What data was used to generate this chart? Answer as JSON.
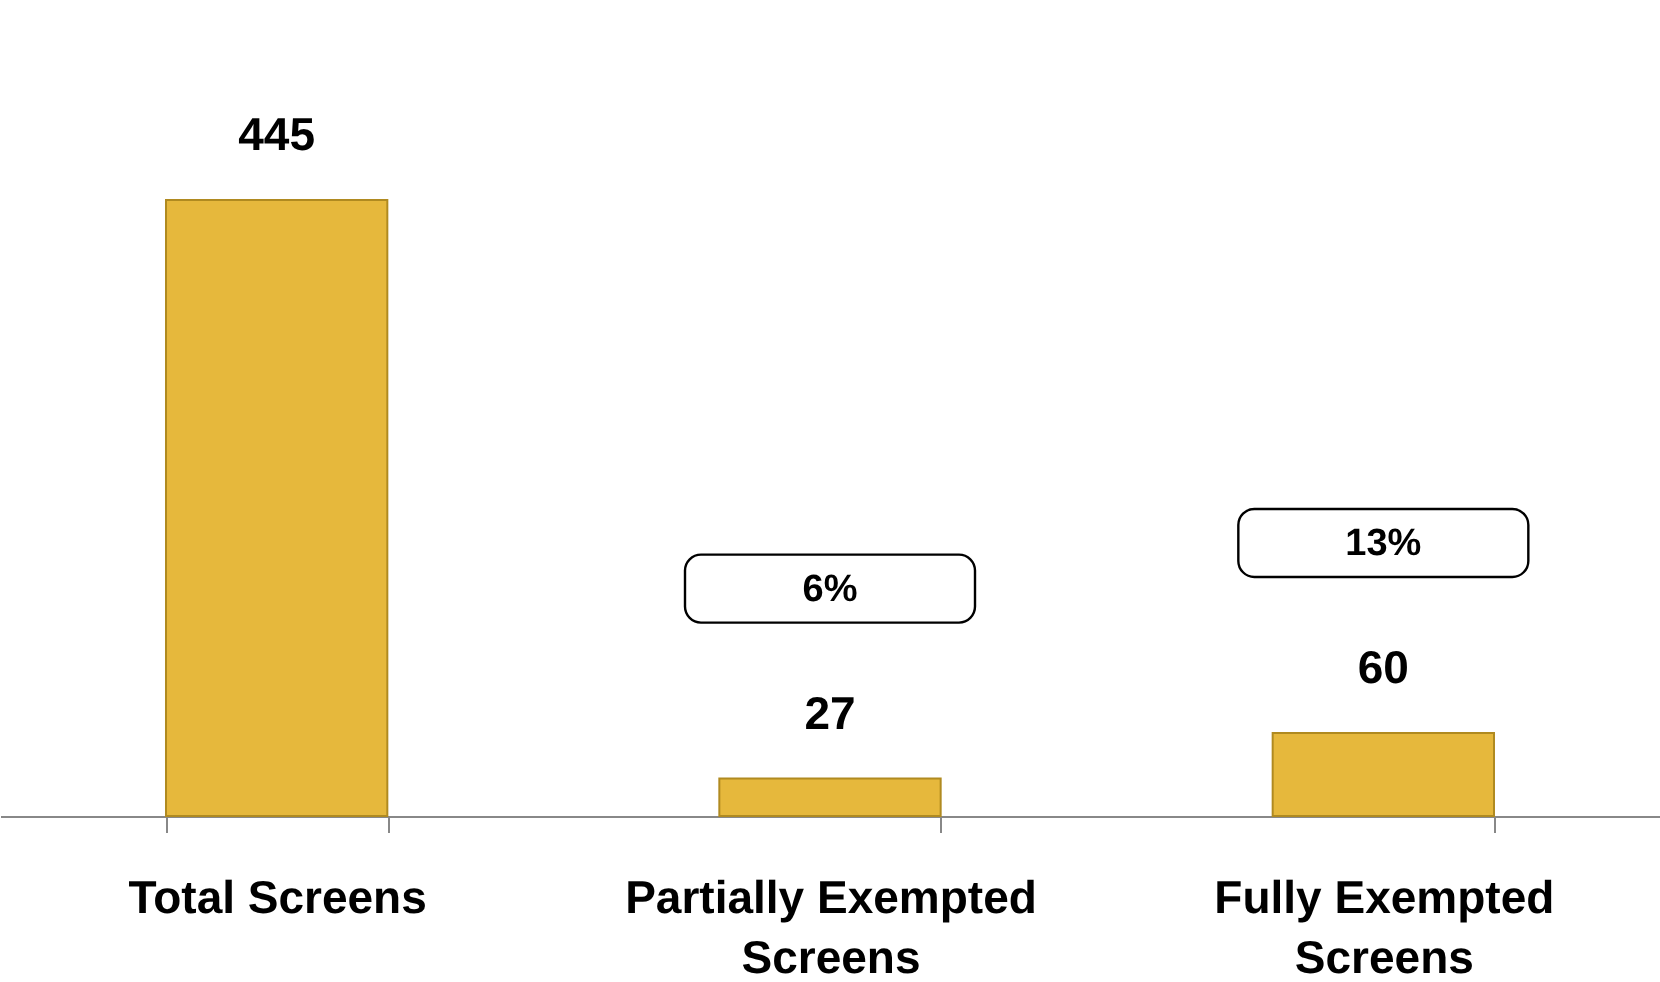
{
  "chart_data": {
    "type": "bar",
    "categories": [
      "Total Screens",
      "Partially Exempted Screens",
      "Fully Exempted Screens"
    ],
    "values": [
      445,
      27,
      60
    ],
    "color": "#e6b83c",
    "data_labels": true,
    "annotations": [
      "6%",
      "13%"
    ]
  }
}
